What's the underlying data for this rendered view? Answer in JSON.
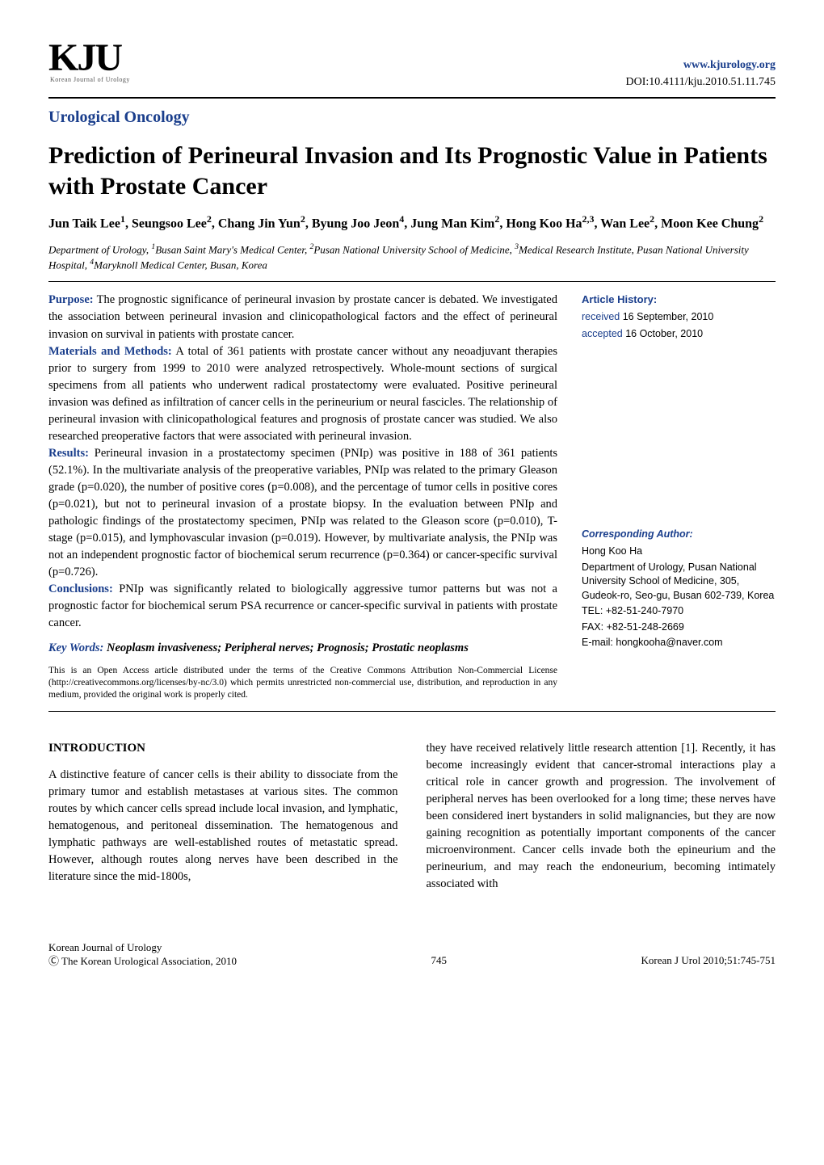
{
  "header": {
    "logo_main": "KJU",
    "logo_sub": "Korean Journal of Urology",
    "url": "www.kjurology.org",
    "doi": "DOI:10.4111/kju.2010.51.11.745"
  },
  "section_label": "Urological Oncology",
  "title": "Prediction of Perineural Invasion and Its Prognostic Value in Patients with Prostate Cancer",
  "authors_html": "Jun Taik Lee<sup>1</sup>, Seungsoo Lee<sup>2</sup>, Chang Jin Yun<sup>2</sup>, Byung Joo Jeon<sup>4</sup>, Jung Man Kim<sup>2</sup>, Hong Koo Ha<sup>2,3</sup>, Wan Lee<sup>2</sup>, Moon Kee Chung<sup>2</sup>",
  "affiliations_html": "Department of Urology, <sup>1</sup>Busan Saint Mary's Medical Center, <sup>2</sup>Pusan National University School of Medicine, <sup>3</sup>Medical Research Institute, Pusan National University Hospital, <sup>4</sup>Maryknoll Medical Center, Busan, Korea",
  "abstract": {
    "purpose_label": "Purpose:",
    "purpose_text": " The prognostic significance of perineural invasion by prostate cancer is debated. We investigated the association between perineural invasion and clinicopathological factors and the effect of perineural invasion on survival in patients with prostate cancer.",
    "methods_label": "Materials and Methods:",
    "methods_text": " A total of 361 patients with prostate cancer without any neoadjuvant therapies prior to surgery from 1999 to 2010 were analyzed retrospectively. Whole-mount sections of surgical specimens from all patients who underwent radical prostatectomy were evaluated. Positive perineural invasion was defined as infiltration of cancer cells in the perineurium or neural fascicles. The relationship of perineural invasion with clinicopathological features and prognosis of prostate cancer was studied. We also researched preoperative factors that were associated with perineural invasion.",
    "results_label": "Results:",
    "results_text": " Perineural invasion in a prostatectomy specimen (PNIp) was positive in 188 of 361 patients (52.1%). In the multivariate analysis of the preoperative variables, PNIp was related to the primary Gleason grade (p=0.020), the number of positive cores (p=0.008), and the percentage of tumor cells in positive cores (p=0.021), but not to perineural invasion of a prostate biopsy. In the evaluation between PNIp and pathologic findings of the prostatectomy specimen, PNIp was related to the Gleason score (p=0.010), T-stage (p=0.015), and lymphovascular invasion (p=0.019). However, by multivariate analysis, the PNIp was not an independent prognostic factor of biochemical serum recurrence (p=0.364) or cancer-specific survival (p=0.726).",
    "conclusions_label": "Conclusions:",
    "conclusions_text": " PNIp was significantly related to biologically aggressive tumor patterns but was not a prognostic factor for biochemical serum PSA recurrence or cancer-specific survival in patients with prostate cancer."
  },
  "keywords": {
    "label": "Key Words:",
    "text": " Neoplasm invasiveness; Peripheral nerves; Prognosis; Prostatic neoplasms"
  },
  "license": "This is an Open Access article distributed under the terms of the Creative Commons Attribution Non-Commercial License (http://creativecommons.org/licenses/by-nc/3.0) which permits unrestricted non-commercial use, distribution, and reproduction in any medium, provided the original work is properly cited.",
  "history": {
    "label": "Article History:",
    "received_label": "received",
    "received_date": " 16 September, 2010",
    "accepted_label": "accepted",
    "accepted_date": " 16 October, 2010"
  },
  "corresponding": {
    "label": "Corresponding Author:",
    "name": "Hong Koo Ha",
    "address": "Department of Urology, Pusan National University School of Medicine, 305, Gudeok-ro, Seo-gu, Busan 602-739, Korea",
    "tel": "TEL: +82-51-240-7970",
    "fax": "FAX: +82-51-248-2669",
    "email": "E-mail: hongkooha@naver.com"
  },
  "body": {
    "intro_heading": "INTRODUCTION",
    "col1": "A distinctive feature of cancer cells is their ability to dissociate from the primary tumor and establish metastases at various sites. The common routes by which cancer cells spread include local invasion, and lymphatic, hematogenous, and peritoneal dissemination. The hematogenous and lymphatic pathways are well-established routes of metastatic spread. However, although routes along nerves have been described in the literature since the mid-1800s,",
    "col2": "they have received relatively little research attention [1]. Recently, it has become increasingly evident that cancer-stromal interactions play a critical role in cancer growth and progression. The involvement of peripheral nerves has been overlooked for a long time; these nerves have been considered inert bystanders in solid malignancies, but they are now gaining recognition as potentially important components of the cancer microenvironment. Cancer cells invade both the epineurium and the perineurium, and may reach the endoneurium, becoming intimately associated with"
  },
  "footer": {
    "left_line1": "Korean Journal of Urology",
    "left_line2": "Ⓒ The Korean Urological Association, 2010",
    "page": "745",
    "right": "Korean J Urol 2010;51:745-751"
  },
  "colors": {
    "accent_blue": "#1a3e8c",
    "text": "#000000",
    "background": "#ffffff"
  }
}
